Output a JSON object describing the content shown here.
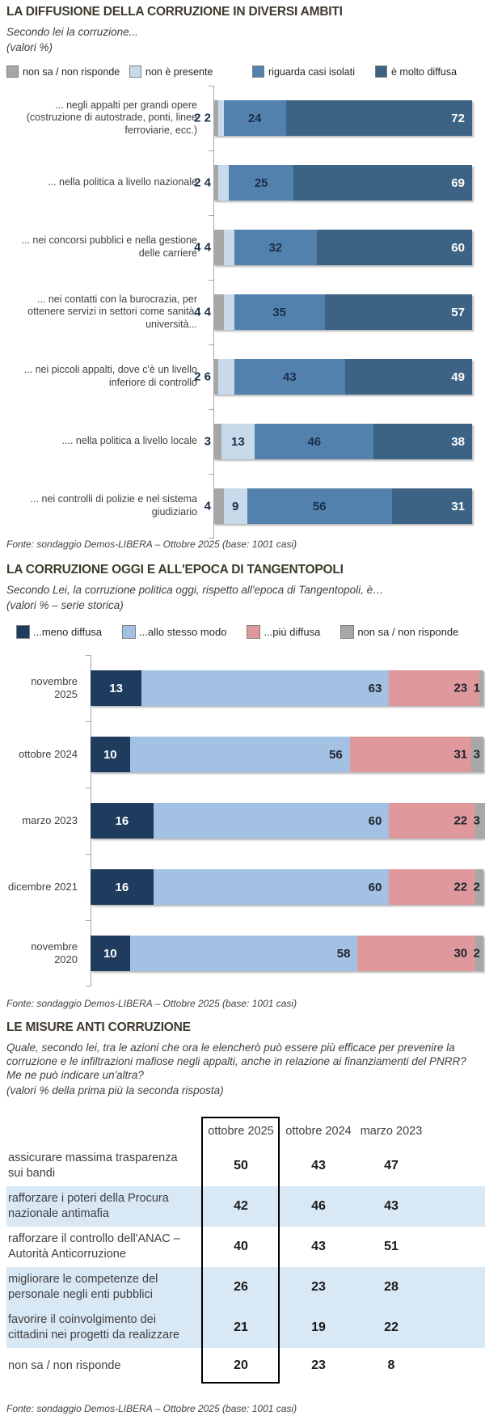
{
  "page": {
    "background": "#ffffff"
  },
  "chart_data": [
    {
      "type": "bar",
      "orientation": "horizontal",
      "stacked": true,
      "title": "LA DIFFUSIONE DELLA CORRUZIONE IN DIVERSI AMBITI",
      "subtitle": "Secondo lei la corruzione...",
      "note": "(valori %)",
      "xlim": [
        0,
        100
      ],
      "legend_position": "top",
      "series": [
        {
          "name": "non sa / non risponde",
          "color": "#a6a6a6"
        },
        {
          "name": "non è presente",
          "color": "#c8d9ea"
        },
        {
          "name": "riguarda casi isolati",
          "color": "#5381ad"
        },
        {
          "name": "è molto diffusa",
          "color": "#3d6384"
        }
      ],
      "categories": [
        "... negli appalti per grandi opere (costruzione di autostrade, ponti, linee ferroviarie, ecc.)",
        "... nella politica a livello nazionale",
        "... nei concorsi pubblici e nella gestione delle carriere",
        "... nei contatti con la burocrazia, per ottenere servizi in settori come sanità, università...",
        "... nei piccoli appalti, dove c'è un livello inferiore di controllo",
        ".... nella politica a livello locale",
        "... nei controlli di polizie e nel sistema giudiziario"
      ],
      "rows": [
        [
          2,
          2,
          24,
          72
        ],
        [
          2,
          4,
          25,
          69
        ],
        [
          4,
          4,
          32,
          60
        ],
        [
          4,
          4,
          35,
          57
        ],
        [
          2,
          6,
          43,
          49
        ],
        [
          3,
          13,
          46,
          38
        ],
        [
          4,
          9,
          56,
          31
        ]
      ],
      "fonte": "Fonte: sondaggio Demos-LIBERA – Ottobre 2025 (base: 1001 casi)"
    },
    {
      "type": "bar",
      "orientation": "horizontal",
      "stacked": true,
      "title": "LA CORRUZIONE OGGI E ALL'EPOCA DI TANGENTOPOLI",
      "subtitle": "Secondo Lei, la corruzione politica oggi, rispetto all'epoca di Tangentopoli, è…",
      "note": "(valori % – serie storica)",
      "xlim": [
        0,
        100
      ],
      "legend_position": "top",
      "series": [
        {
          "name": "...meno diffusa",
          "color": "#1f3b5e"
        },
        {
          "name": "...allo stesso modo",
          "color": "#a3c1e3"
        },
        {
          "name": "...più diffusa",
          "color": "#df999c"
        },
        {
          "name": "non sa / non risponde",
          "color": "#a8a8a8"
        }
      ],
      "categories": [
        "novembre 2025",
        "ottobre 2024",
        "marzo 2023",
        "dicembre 2021",
        "novembre 2020"
      ],
      "rows": [
        [
          13,
          63,
          23,
          1
        ],
        [
          10,
          56,
          31,
          3
        ],
        [
          16,
          60,
          22,
          3
        ],
        [
          16,
          60,
          22,
          2
        ],
        [
          10,
          58,
          30,
          2
        ]
      ],
      "fonte": "Fonte: sondaggio Demos-LIBERA – Ottobre 2025 (base: 1001 casi)"
    },
    {
      "type": "table",
      "title": "LE MISURE ANTI CORRUZIONE",
      "subtitle": "Quale, secondo lei, tra le azioni che ora le elencherò può essere più efficace per prevenire la corruzione e le infiltrazioni mafiose negli appalti, anche in relazione ai finanziamenti del PNRR? Me ne può indicare un'altra?",
      "note": "(valori % della prima più la seconda risposta)",
      "columns": [
        "ottobre 2025",
        "ottobre 2024",
        "marzo 2023"
      ],
      "highlighted_column": "ottobre 2025",
      "rows": [
        {
          "label": "assicurare massima trasparenza sui bandi",
          "values": [
            50,
            43,
            47
          ],
          "shaded": false
        },
        {
          "label": "rafforzare i poteri della Procura nazionale antimafia",
          "values": [
            42,
            46,
            43
          ],
          "shaded": true
        },
        {
          "label": "rafforzare il controllo dell'ANAC – Autorità Anticorruzione",
          "values": [
            40,
            43,
            51
          ],
          "shaded": false
        },
        {
          "label": "migliorare le competenze del personale negli enti pubblici",
          "values": [
            26,
            23,
            28
          ],
          "shaded": true
        },
        {
          "label": "favorire il coinvolgimento dei cittadini nei progetti da realizzare",
          "values": [
            21,
            19,
            22
          ],
          "shaded": true
        },
        {
          "label": "non sa / non risponde",
          "values": [
            20,
            23,
            8
          ],
          "shaded": false
        }
      ],
      "fonte": "Fonte: sondaggio Demos-LIBERA – Ottobre 2025 (base: 1001 casi)"
    }
  ]
}
